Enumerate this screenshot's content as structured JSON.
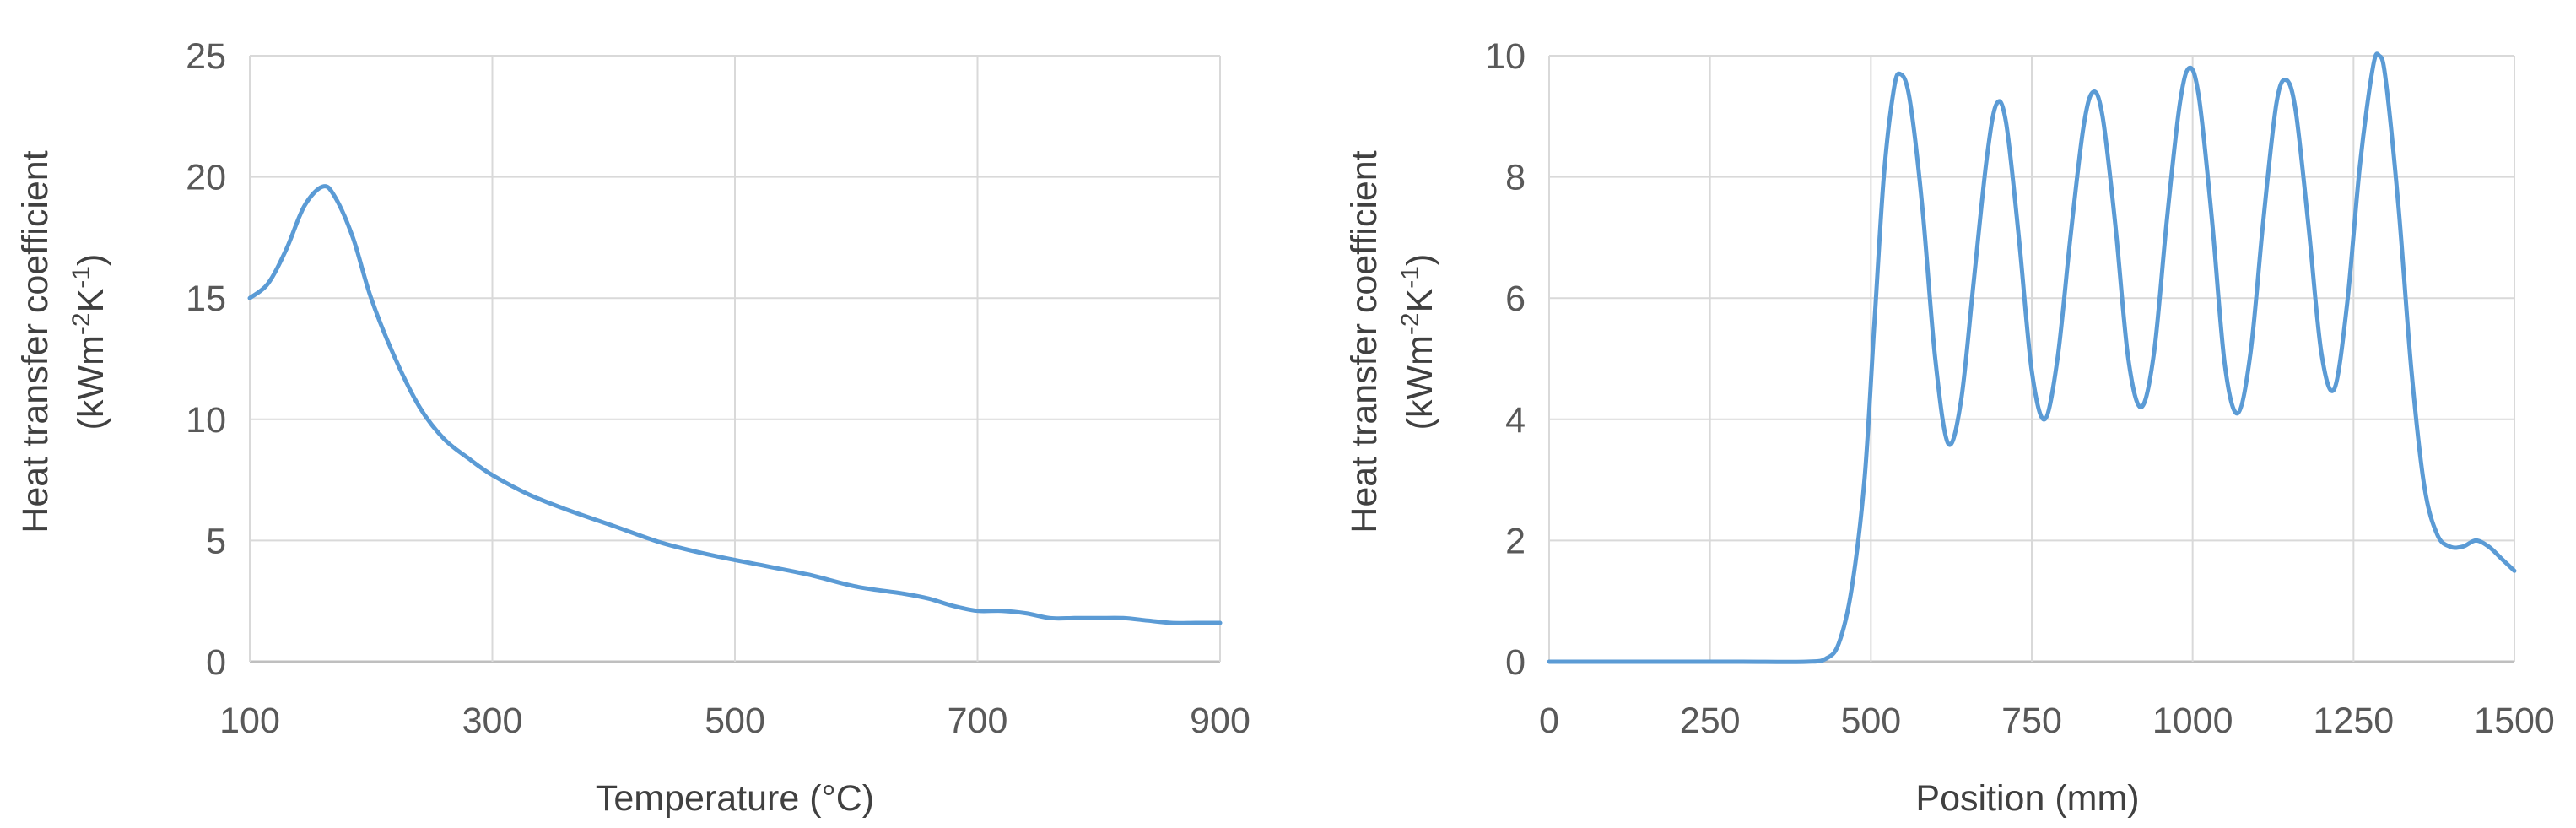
{
  "colors": {
    "line": "#5b9bd5",
    "grid": "#d9d9d9",
    "axis": "#bfbfbf",
    "text": "#595959"
  },
  "chart_data": [
    {
      "type": "line",
      "xlabel": "Temperature (°C)",
      "ylabel_line1": "Heat transfer coefficient",
      "ylabel_line2": {
        "base": "(kWm",
        "sup1": "-2",
        "mid": "K",
        "sup2": "-1",
        "end": ")"
      },
      "xlim": [
        100,
        900
      ],
      "ylim": [
        0,
        25
      ],
      "xticks": [
        "100",
        "300",
        "500",
        "700",
        "900"
      ],
      "yticks": [
        "0",
        "5",
        "10",
        "15",
        "20",
        "25"
      ],
      "grid": true,
      "series": [
        {
          "x": [
            100,
            115,
            130,
            145,
            160,
            170,
            185,
            200,
            220,
            240,
            260,
            280,
            300,
            330,
            360,
            400,
            440,
            480,
            520,
            560,
            600,
            640,
            660,
            680,
            700,
            720,
            740,
            760,
            780,
            800,
            820,
            840,
            860,
            880,
            900
          ],
          "values": [
            15.0,
            15.6,
            17.0,
            18.8,
            19.6,
            19.2,
            17.5,
            15.0,
            12.5,
            10.5,
            9.2,
            8.4,
            7.7,
            6.9,
            6.3,
            5.6,
            4.9,
            4.4,
            4.0,
            3.6,
            3.1,
            2.8,
            2.6,
            2.3,
            2.1,
            2.1,
            2.0,
            1.8,
            1.8,
            1.8,
            1.8,
            1.7,
            1.6,
            1.6,
            1.6
          ]
        }
      ]
    },
    {
      "type": "line",
      "xlabel": "Position (mm)",
      "ylabel_line1": "Heat transfer coefficient",
      "ylabel_line2": {
        "base": "(kWm",
        "sup1": "-2",
        "mid": "K",
        "sup2": "-1",
        "end": ")"
      },
      "xlim": [
        0,
        1500
      ],
      "ylim": [
        0,
        10
      ],
      "xticks": [
        "0",
        "250",
        "500",
        "750",
        "1000",
        "1250",
        "1500"
      ],
      "yticks": [
        "0",
        "2",
        "4",
        "6",
        "8",
        "10"
      ],
      "grid": true,
      "series": [
        {
          "x": [
            0,
            100,
            200,
            300,
            400,
            430,
            450,
            470,
            490,
            505,
            520,
            535,
            545,
            560,
            580,
            600,
            620,
            640,
            660,
            680,
            695,
            710,
            730,
            750,
            770,
            790,
            810,
            830,
            845,
            860,
            880,
            900,
            920,
            940,
            960,
            980,
            995,
            1010,
            1030,
            1050,
            1070,
            1090,
            1110,
            1130,
            1145,
            1160,
            1180,
            1200,
            1220,
            1240,
            1260,
            1280,
            1290,
            1300,
            1320,
            1340,
            1360,
            1380,
            1400,
            1420,
            1440,
            1460,
            1480,
            1500
          ],
          "values": [
            0,
            0,
            0,
            0,
            0,
            0.05,
            0.3,
            1.2,
            3.0,
            5.5,
            8.0,
            9.4,
            9.7,
            9.3,
            7.5,
            5.0,
            3.6,
            4.3,
            6.3,
            8.3,
            9.2,
            8.9,
            7.0,
            4.8,
            4.0,
            5.0,
            7.0,
            8.8,
            9.4,
            9.0,
            7.2,
            5.0,
            4.2,
            5.1,
            7.3,
            9.2,
            9.8,
            9.3,
            7.3,
            4.9,
            4.1,
            5.1,
            7.3,
            9.2,
            9.6,
            9.1,
            7.2,
            5.1,
            4.5,
            5.9,
            8.2,
            9.8,
            10.0,
            9.6,
            7.5,
            4.8,
            2.9,
            2.1,
            1.9,
            1.9,
            2.0,
            1.9,
            1.7,
            1.5
          ]
        }
      ]
    }
  ]
}
